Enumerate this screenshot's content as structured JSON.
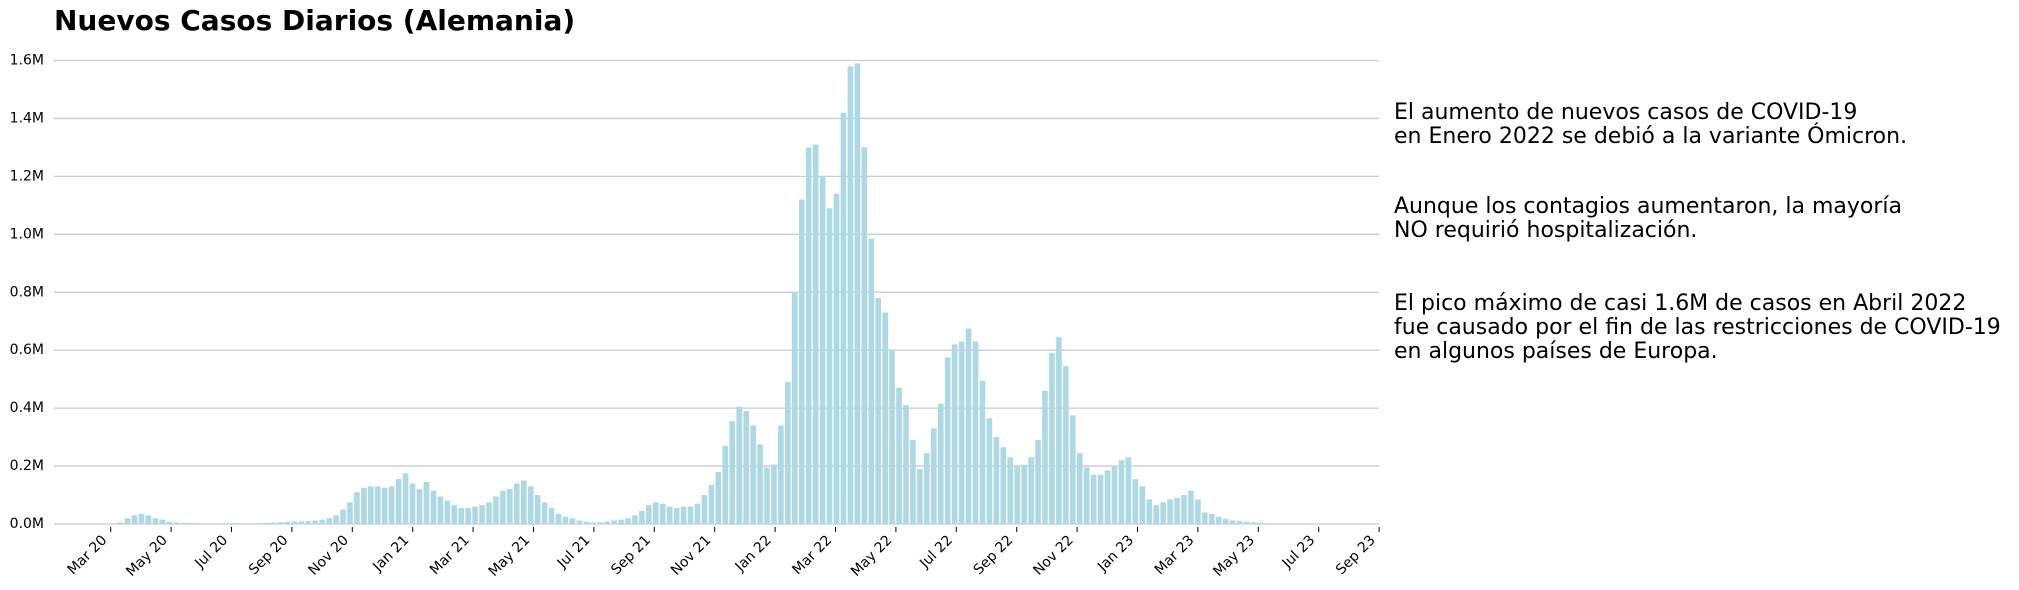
{
  "chart_data": {
    "type": "bar",
    "title": "Nuevos Casos Diarios (Alemania)",
    "color": "#add8e6",
    "grid": true,
    "ylim": [
      0,
      1.6
    ],
    "yticks": [
      {
        "value": 0,
        "label": "0.0M"
      },
      {
        "value": 0.2,
        "label": "0.2M"
      },
      {
        "value": 0.4,
        "label": "0.4M"
      },
      {
        "value": 0.6,
        "label": "0.6M"
      },
      {
        "value": 0.8,
        "label": "0.8M"
      },
      {
        "value": 1.0,
        "label": "1.0M"
      },
      {
        "value": 1.2,
        "label": "1.2M"
      },
      {
        "value": 1.4,
        "label": "1.4M"
      },
      {
        "value": 1.6,
        "label": "1.6M"
      }
    ],
    "xticks": [
      "Mar 20",
      "May 20",
      "Jul 20",
      "Sep 20",
      "Nov 20",
      "Jan 21",
      "Mar 21",
      "May 21",
      "Jul 21",
      "Sep 21",
      "Nov 21",
      "Jan 22",
      "Mar 22",
      "May 22",
      "Jul 22",
      "Sep 22",
      "Nov 22",
      "Jan 23",
      "Mar 23",
      "May 23",
      "Jul 23",
      "Sep 23"
    ],
    "values": [
      0.002,
      0.005,
      0.02,
      0.03,
      0.035,
      0.03,
      0.02,
      0.015,
      0.008,
      0.005,
      0.004,
      0.003,
      0.003,
      0.002,
      0.002,
      0.002,
      0.003,
      0.003,
      0.003,
      0.002,
      0.002,
      0.003,
      0.004,
      0.005,
      0.006,
      0.007,
      0.008,
      0.009,
      0.01,
      0.012,
      0.015,
      0.02,
      0.03,
      0.05,
      0.075,
      0.11,
      0.125,
      0.13,
      0.13,
      0.125,
      0.13,
      0.155,
      0.175,
      0.14,
      0.12,
      0.145,
      0.115,
      0.095,
      0.08,
      0.065,
      0.055,
      0.055,
      0.06,
      0.065,
      0.075,
      0.095,
      0.115,
      0.12,
      0.14,
      0.15,
      0.13,
      0.1,
      0.075,
      0.055,
      0.035,
      0.025,
      0.02,
      0.012,
      0.008,
      0.005,
      0.006,
      0.008,
      0.012,
      0.015,
      0.02,
      0.03,
      0.045,
      0.065,
      0.075,
      0.07,
      0.06,
      0.055,
      0.06,
      0.06,
      0.07,
      0.1,
      0.135,
      0.18,
      0.27,
      0.355,
      0.405,
      0.39,
      0.34,
      0.275,
      0.195,
      0.205,
      0.34,
      0.49,
      0.8,
      1.12,
      1.3,
      1.31,
      1.2,
      1.09,
      1.14,
      1.42,
      1.58,
      1.59,
      1.3,
      0.985,
      0.78,
      0.73,
      0.6,
      0.47,
      0.41,
      0.29,
      0.19,
      0.245,
      0.33,
      0.415,
      0.575,
      0.62,
      0.63,
      0.675,
      0.63,
      0.495,
      0.365,
      0.3,
      0.265,
      0.23,
      0.2,
      0.205,
      0.23,
      0.29,
      0.46,
      0.59,
      0.645,
      0.545,
      0.375,
      0.245,
      0.195,
      0.17,
      0.17,
      0.185,
      0.2,
      0.22,
      0.23,
      0.155,
      0.13,
      0.085,
      0.065,
      0.075,
      0.085,
      0.09,
      0.1,
      0.115,
      0.085,
      0.04,
      0.035,
      0.025,
      0.018,
      0.012,
      0.01,
      0.008,
      0.006,
      0.005,
      0.003
    ],
    "annotations": [
      [
        "El aumento de nuevos casos de COVID-19",
        "en Enero 2022 se debió a la variante Ómicron."
      ],
      [
        "Aunque los contagios aumentaron, la mayoría",
        "NO requirió hospitalización."
      ],
      [
        "El pico máximo de casi 1.6M de casos en Abril 2022",
        "fue causado por el fin de las restricciones de COVID-19",
        "en algunos países de Europa."
      ]
    ]
  }
}
